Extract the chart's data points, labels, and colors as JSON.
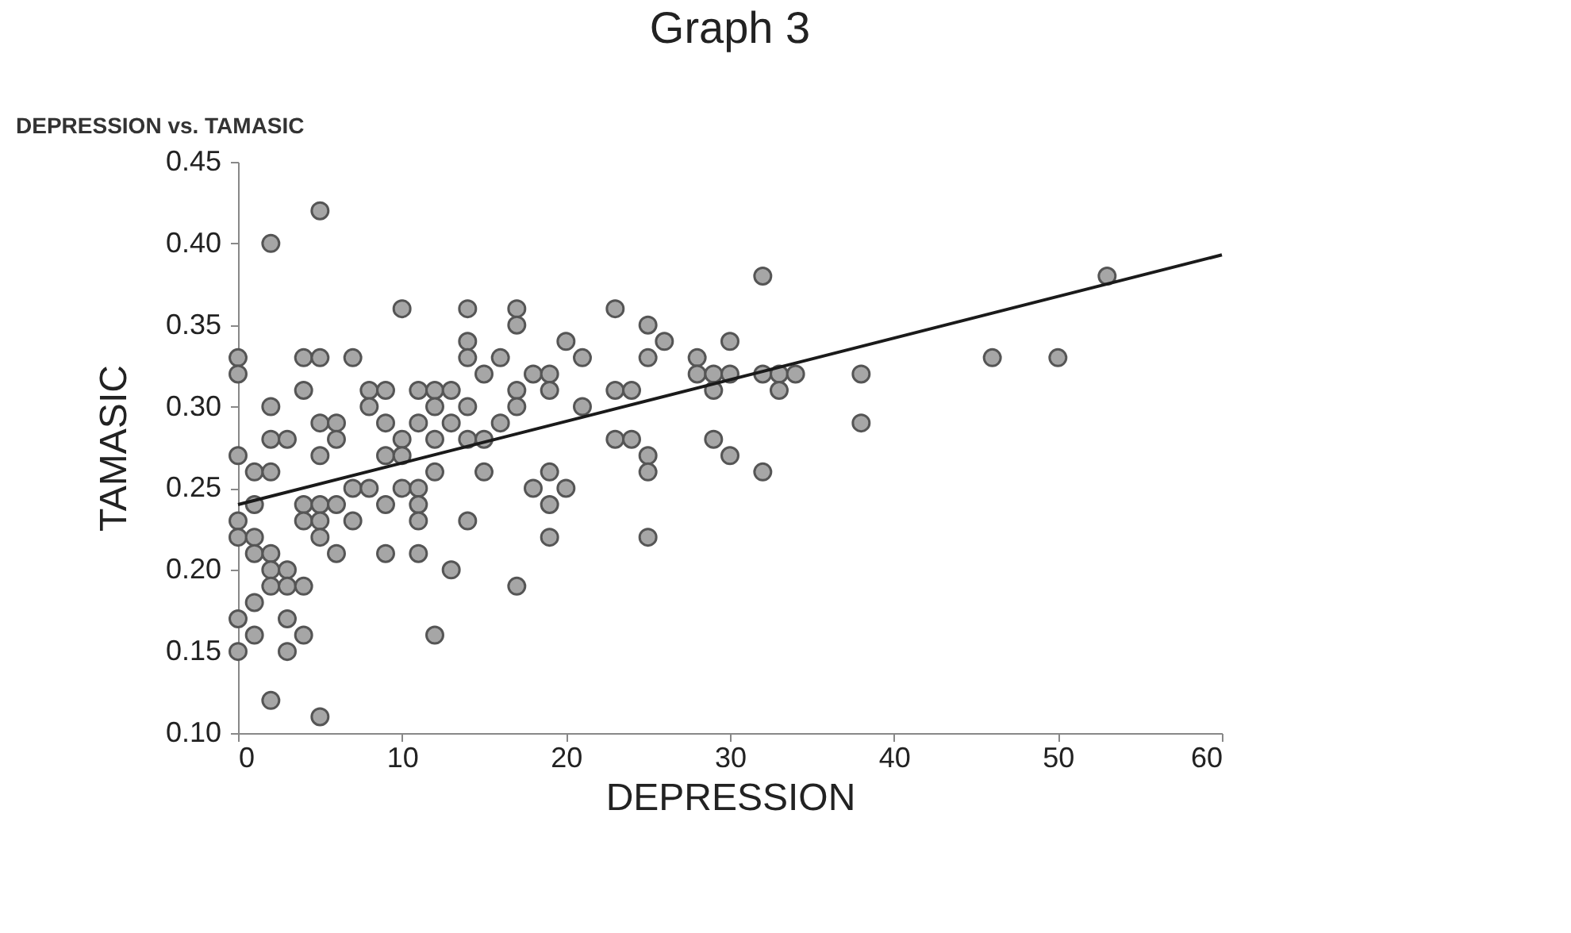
{
  "chart_data": {
    "type": "scatter",
    "title": "Graph 3",
    "subtitle": "DEPRESSION vs. TAMASIC",
    "xlabel": "DEPRESSION",
    "ylabel": "TAMASIC",
    "xlim": [
      0,
      60
    ],
    "xticks": [
      0,
      10,
      20,
      30,
      40,
      50,
      60
    ],
    "ylim": [
      0.1,
      0.45
    ],
    "yticks": [
      {
        "value": 0.1,
        "label": "0.10"
      },
      {
        "value": 0.15,
        "label": "0.15"
      },
      {
        "value": 0.2,
        "label": "0.20"
      },
      {
        "value": 0.25,
        "label": "0.25"
      },
      {
        "value": 0.3,
        "label": "0.30"
      },
      {
        "value": 0.35,
        "label": "0.35"
      },
      {
        "value": 0.4,
        "label": "0.40"
      },
      {
        "value": 0.45,
        "label": "0.45"
      }
    ],
    "grid": false,
    "series": [
      {
        "color": "#a6a6a6",
        "marker": "circle",
        "x": [
          0,
          0,
          0,
          0,
          0,
          0,
          0,
          1,
          1,
          1,
          1,
          1,
          1,
          2,
          2,
          2,
          2,
          2,
          2,
          2,
          2,
          3,
          3,
          3,
          3,
          3,
          4,
          4,
          4,
          4,
          4,
          4,
          5,
          5,
          5,
          5,
          5,
          5,
          5,
          5,
          6,
          6,
          6,
          6,
          7,
          7,
          7,
          8,
          8,
          8,
          9,
          9,
          9,
          9,
          9,
          10,
          10,
          10,
          10,
          11,
          11,
          11,
          11,
          11,
          11,
          12,
          12,
          12,
          12,
          12,
          13,
          13,
          13,
          14,
          14,
          14,
          14,
          14,
          14,
          15,
          15,
          15,
          16,
          16,
          17,
          17,
          17,
          17,
          17,
          18,
          18,
          19,
          19,
          19,
          19,
          19,
          20,
          20,
          21,
          21,
          23,
          23,
          23,
          24,
          24,
          25,
          25,
          25,
          25,
          25,
          26,
          28,
          28,
          29,
          29,
          29,
          30,
          30,
          30,
          32,
          32,
          32,
          33,
          33,
          34,
          38,
          38,
          46,
          50,
          53
        ],
        "values": [
          0.33,
          0.32,
          0.27,
          0.23,
          0.22,
          0.17,
          0.15,
          0.26,
          0.22,
          0.21,
          0.18,
          0.16,
          0.24,
          0.4,
          0.3,
          0.28,
          0.26,
          0.21,
          0.2,
          0.19,
          0.12,
          0.28,
          0.2,
          0.19,
          0.17,
          0.15,
          0.33,
          0.31,
          0.24,
          0.23,
          0.19,
          0.16,
          0.42,
          0.33,
          0.29,
          0.27,
          0.24,
          0.23,
          0.22,
          0.11,
          0.29,
          0.28,
          0.24,
          0.21,
          0.33,
          0.25,
          0.23,
          0.31,
          0.3,
          0.25,
          0.31,
          0.29,
          0.27,
          0.24,
          0.21,
          0.36,
          0.28,
          0.27,
          0.25,
          0.31,
          0.29,
          0.25,
          0.24,
          0.23,
          0.21,
          0.31,
          0.3,
          0.28,
          0.26,
          0.16,
          0.31,
          0.29,
          0.2,
          0.36,
          0.34,
          0.33,
          0.3,
          0.28,
          0.23,
          0.32,
          0.28,
          0.26,
          0.33,
          0.29,
          0.36,
          0.35,
          0.31,
          0.3,
          0.19,
          0.32,
          0.25,
          0.32,
          0.31,
          0.26,
          0.24,
          0.22,
          0.34,
          0.25,
          0.33,
          0.3,
          0.36,
          0.31,
          0.28,
          0.31,
          0.28,
          0.35,
          0.33,
          0.27,
          0.26,
          0.22,
          0.34,
          0.33,
          0.32,
          0.32,
          0.31,
          0.28,
          0.34,
          0.32,
          0.27,
          0.38,
          0.32,
          0.26,
          0.32,
          0.31,
          0.32,
          0.32,
          0.29,
          0.33,
          0.33,
          0.38
        ]
      },
      {
        "type": "line",
        "color": "#1a1a1a",
        "x": [
          0,
          60
        ],
        "values": [
          0.24,
          0.393
        ],
        "line_style": "solid",
        "marker": "none"
      }
    ]
  }
}
